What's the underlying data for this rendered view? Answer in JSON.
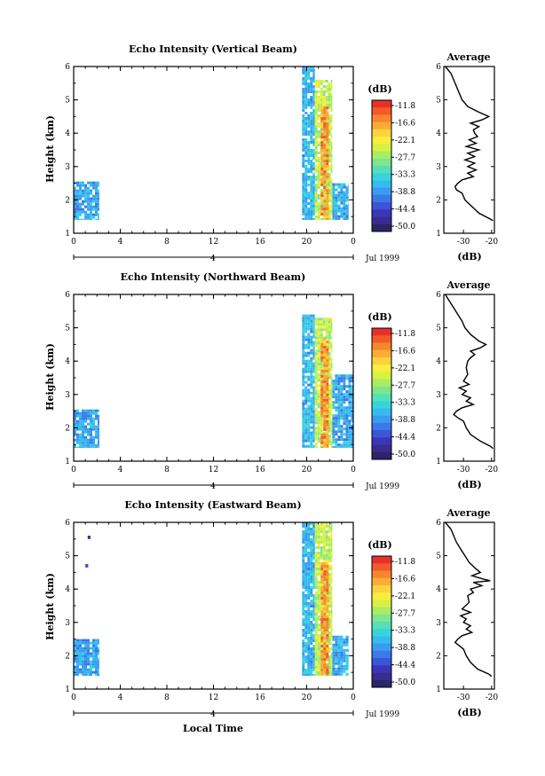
{
  "common": {
    "time_ticks": [
      "0",
      "4",
      "8",
      "12",
      "16",
      "20",
      "0"
    ],
    "height_ticks": [
      "1",
      "2",
      "3",
      "4",
      "5",
      "6"
    ],
    "day_marker": "4",
    "date_label": "Jul 1999",
    "xlabel": "Local Time",
    "ylabel": "Height (km)",
    "colorbar_unit": "(dB)",
    "colorbar_levels": [
      "-11.8",
      "-16.6",
      "-22.1",
      "-27.7",
      "-33.3",
      "-38.8",
      "-44.4",
      "-50.0"
    ],
    "colorbar_colors": [
      "#e8302a",
      "#f25a2a",
      "#f7862d",
      "#fbac36",
      "#fdd33c",
      "#f7ee3d",
      "#d7f043",
      "#a9ed63",
      "#7fe68e",
      "#55e0b8",
      "#38d3dd",
      "#35bbee",
      "#3a9cf0",
      "#3b78e8",
      "#3a55d5",
      "#3a36b8",
      "#3a2b8f",
      "#2b2466"
    ]
  },
  "chart_data": [
    {
      "type": "heatmap",
      "title": "Echo Intensity (Vertical Beam)",
      "xlabel": "",
      "ylabel": "Height (km)",
      "xlim": [
        0,
        24
      ],
      "ylim": [
        1,
        6
      ],
      "units": "dB",
      "range": [
        -50.0,
        -11.8
      ],
      "average_profile": {
        "title": "Average",
        "xlabel": "(dB)",
        "xticks": [
          "-30",
          "-20"
        ],
        "xlim": [
          -37,
          -19
        ],
        "points": [
          [
            6.0,
            -36.5
          ],
          [
            5.8,
            -34.5
          ],
          [
            5.6,
            -33.5
          ],
          [
            5.4,
            -32.5
          ],
          [
            5.2,
            -31.5
          ],
          [
            5.0,
            -30.5
          ],
          [
            4.8,
            -28.5
          ],
          [
            4.65,
            -25.0
          ],
          [
            4.5,
            -21.0
          ],
          [
            4.4,
            -23.5
          ],
          [
            4.3,
            -27.5
          ],
          [
            4.2,
            -24.5
          ],
          [
            4.1,
            -26.5
          ],
          [
            4.0,
            -26.0
          ],
          [
            3.9,
            -25.0
          ],
          [
            3.8,
            -28.0
          ],
          [
            3.7,
            -25.5
          ],
          [
            3.6,
            -29.0
          ],
          [
            3.5,
            -24.5
          ],
          [
            3.4,
            -28.5
          ],
          [
            3.3,
            -26.0
          ],
          [
            3.2,
            -29.5
          ],
          [
            3.1,
            -26.0
          ],
          [
            3.0,
            -28.5
          ],
          [
            2.9,
            -25.5
          ],
          [
            2.8,
            -28.5
          ],
          [
            2.7,
            -26.5
          ],
          [
            2.6,
            -30.5
          ],
          [
            2.5,
            -32.0
          ],
          [
            2.4,
            -33.0
          ],
          [
            2.3,
            -32.5
          ],
          [
            2.2,
            -30.5
          ],
          [
            2.0,
            -29.5
          ],
          [
            1.8,
            -27.0
          ],
          [
            1.6,
            -24.5
          ],
          [
            1.45,
            -21.0
          ],
          [
            1.38,
            -19.5
          ]
        ]
      },
      "echo_patches": [
        {
          "t0": 0.0,
          "t1": 2.2,
          "h0": 1.4,
          "h1": 2.55,
          "level": 0.32
        },
        {
          "t0": 19.6,
          "t1": 20.7,
          "h0": 1.4,
          "h1": 6.0,
          "level": 0.35
        },
        {
          "t0": 20.7,
          "t1": 22.2,
          "h0": 1.4,
          "h1": 5.6,
          "level": 0.62
        },
        {
          "t0": 21.2,
          "t1": 21.9,
          "h0": 1.4,
          "h1": 4.8,
          "level": 0.86
        },
        {
          "t0": 22.2,
          "t1": 23.6,
          "h0": 1.4,
          "h1": 2.5,
          "level": 0.32
        }
      ]
    },
    {
      "type": "heatmap",
      "title": "Echo Intensity (Northward Beam)",
      "xlabel": "",
      "ylabel": "Height (km)",
      "xlim": [
        0,
        24
      ],
      "ylim": [
        1,
        6
      ],
      "units": "dB",
      "range": [
        -50.0,
        -11.8
      ],
      "average_profile": {
        "title": "Average",
        "xlabel": "(dB)",
        "xticks": [
          "-30",
          "-20"
        ],
        "xlim": [
          -37,
          -19
        ],
        "points": [
          [
            6.0,
            -36.5
          ],
          [
            5.8,
            -35.0
          ],
          [
            5.6,
            -33.5
          ],
          [
            5.4,
            -32.0
          ],
          [
            5.2,
            -30.5
          ],
          [
            5.0,
            -29.5
          ],
          [
            4.8,
            -27.5
          ],
          [
            4.6,
            -24.5
          ],
          [
            4.5,
            -22.0
          ],
          [
            4.4,
            -24.0
          ],
          [
            4.3,
            -27.5
          ],
          [
            4.2,
            -26.0
          ],
          [
            4.1,
            -27.5
          ],
          [
            4.0,
            -28.5
          ],
          [
            3.8,
            -29.0
          ],
          [
            3.6,
            -28.5
          ],
          [
            3.4,
            -30.0
          ],
          [
            3.3,
            -28.0
          ],
          [
            3.2,
            -31.5
          ],
          [
            3.1,
            -29.0
          ],
          [
            3.0,
            -30.5
          ],
          [
            2.9,
            -27.5
          ],
          [
            2.8,
            -29.0
          ],
          [
            2.7,
            -26.5
          ],
          [
            2.6,
            -30.5
          ],
          [
            2.5,
            -32.5
          ],
          [
            2.4,
            -33.5
          ],
          [
            2.3,
            -32.0
          ],
          [
            2.2,
            -30.0
          ],
          [
            2.0,
            -29.0
          ],
          [
            1.8,
            -27.5
          ],
          [
            1.6,
            -24.0
          ],
          [
            1.45,
            -20.5
          ],
          [
            1.38,
            -19.5
          ]
        ]
      },
      "echo_patches": [
        {
          "t0": 0.0,
          "t1": 2.2,
          "h0": 1.4,
          "h1": 2.55,
          "level": 0.32
        },
        {
          "t0": 19.6,
          "t1": 20.7,
          "h0": 1.4,
          "h1": 5.4,
          "level": 0.35
        },
        {
          "t0": 20.7,
          "t1": 22.2,
          "h0": 1.4,
          "h1": 5.3,
          "level": 0.62
        },
        {
          "t0": 21.2,
          "t1": 21.9,
          "h0": 1.4,
          "h1": 4.7,
          "level": 0.86
        },
        {
          "t0": 22.2,
          "t1": 24.0,
          "h0": 1.4,
          "h1": 3.6,
          "level": 0.32
        }
      ]
    },
    {
      "type": "heatmap",
      "title": "Echo Intensity (Eastward Beam)",
      "xlabel": "Local Time",
      "ylabel": "Height (km)",
      "xlim": [
        0,
        24
      ],
      "ylim": [
        1,
        6
      ],
      "units": "dB",
      "range": [
        -50.0,
        -11.8
      ],
      "average_profile": {
        "title": "Average",
        "xlabel": "(dB)",
        "xticks": [
          "-30",
          "-20"
        ],
        "xlim": [
          -37,
          -19
        ],
        "points": [
          [
            6.0,
            -36.5
          ],
          [
            5.8,
            -34.5
          ],
          [
            5.6,
            -33.5
          ],
          [
            5.4,
            -32.5
          ],
          [
            5.2,
            -31.0
          ],
          [
            5.0,
            -29.5
          ],
          [
            4.8,
            -28.0
          ],
          [
            4.6,
            -25.5
          ],
          [
            4.5,
            -24.0
          ],
          [
            4.4,
            -27.0
          ],
          [
            4.3,
            -23.0
          ],
          [
            4.25,
            -20.5
          ],
          [
            4.2,
            -26.5
          ],
          [
            4.1,
            -23.5
          ],
          [
            4.0,
            -27.5
          ],
          [
            3.9,
            -26.5
          ],
          [
            3.8,
            -28.5
          ],
          [
            3.6,
            -28.0
          ],
          [
            3.4,
            -30.5
          ],
          [
            3.3,
            -27.5
          ],
          [
            3.2,
            -31.0
          ],
          [
            3.1,
            -29.0
          ],
          [
            3.0,
            -30.0
          ],
          [
            2.9,
            -27.5
          ],
          [
            2.8,
            -29.0
          ],
          [
            2.7,
            -27.0
          ],
          [
            2.6,
            -30.5
          ],
          [
            2.5,
            -32.0
          ],
          [
            2.4,
            -33.0
          ],
          [
            2.3,
            -31.5
          ],
          [
            2.2,
            -30.0
          ],
          [
            2.0,
            -29.0
          ],
          [
            1.8,
            -27.5
          ],
          [
            1.6,
            -25.0
          ],
          [
            1.45,
            -21.0
          ],
          [
            1.38,
            -20.0
          ]
        ]
      },
      "echo_patches": [
        {
          "t0": 0.0,
          "t1": 2.2,
          "h0": 1.4,
          "h1": 2.5,
          "level": 0.32
        },
        {
          "t0": 1.2,
          "t1": 1.45,
          "h0": 5.5,
          "h1": 5.6,
          "level": 0.1
        },
        {
          "t0": 1.0,
          "t1": 1.25,
          "h0": 4.65,
          "h1": 4.75,
          "level": 0.1
        },
        {
          "t0": 19.6,
          "t1": 20.7,
          "h0": 1.4,
          "h1": 6.0,
          "level": 0.35
        },
        {
          "t0": 20.7,
          "t1": 22.2,
          "h0": 1.4,
          "h1": 6.0,
          "level": 0.62
        },
        {
          "t0": 21.2,
          "t1": 21.9,
          "h0": 1.4,
          "h1": 4.8,
          "level": 0.86
        },
        {
          "t0": 22.2,
          "t1": 23.6,
          "h0": 1.4,
          "h1": 2.6,
          "level": 0.32
        }
      ]
    }
  ]
}
